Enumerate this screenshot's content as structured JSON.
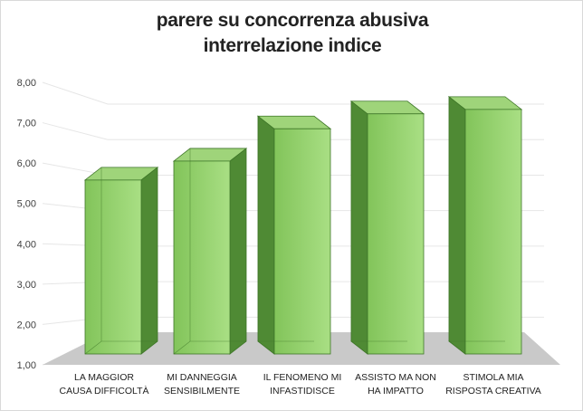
{
  "chart_data": {
    "type": "bar",
    "title_lines": [
      "parere su concorrenza abusiva",
      "interrelazione indice"
    ],
    "categories": [
      [
        "LA MAGGIOR",
        "CAUSA DIFFICOLTÀ"
      ],
      [
        "MI DANNEGGIA",
        "SENSIBILMENTE"
      ],
      [
        "IL FENOMENO MI",
        "INFASTIDISCE"
      ],
      [
        "ASSISTO MA NON",
        "HA  IMPATTO"
      ],
      [
        "STIMOLA MIA",
        "RISPOSTA CREATIVA"
      ]
    ],
    "values": [
      5.58,
      6.05,
      6.85,
      7.22,
      7.33
    ],
    "y_ticks": [
      "1,00",
      "2,00",
      "3,00",
      "4,00",
      "5,00",
      "6,00",
      "7,00",
      "8,00"
    ],
    "ylim": [
      1,
      8
    ],
    "style": "3d-column",
    "grid": true,
    "colors": {
      "bar_front": "#82c45a",
      "bar_front_light": "#a9df84",
      "bar_side": "#4f8a34",
      "bar_top": "#9fd47a",
      "bar_edge": "#3e7628",
      "floor": "#c9c9c9",
      "gridline": "#e6e6e6"
    }
  }
}
